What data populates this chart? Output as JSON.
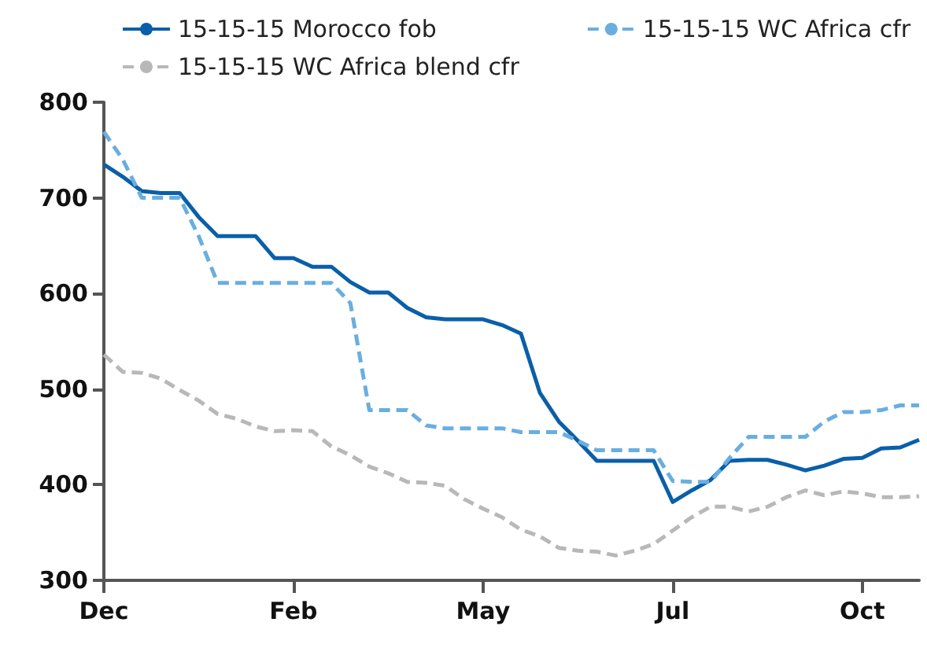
{
  "chart_data": {
    "type": "line",
    "categories": [
      "Dec",
      null,
      null,
      null,
      null,
      null,
      null,
      null,
      null,
      null,
      "Feb",
      null,
      null,
      null,
      null,
      null,
      null,
      null,
      null,
      null,
      "May",
      null,
      null,
      null,
      null,
      null,
      null,
      null,
      null,
      null,
      "Jul",
      null,
      null,
      null,
      null,
      null,
      null,
      null,
      null,
      null,
      "Oct",
      null,
      null,
      null
    ],
    "series": [
      {
        "name": "15-15-15 Morocco fob",
        "color": "#0a5fa8",
        "line_style": "solid",
        "values": [
          735,
          722,
          707,
          705,
          705,
          680,
          660,
          660,
          660,
          637,
          637,
          628,
          628,
          612,
          601,
          601,
          585,
          575,
          573,
          573,
          573,
          567,
          558,
          496,
          466,
          446,
          425,
          425,
          425,
          425,
          382,
          394,
          405,
          425,
          426,
          426,
          421,
          415,
          420,
          427,
          428,
          438,
          439,
          447
        ]
      },
      {
        "name": "15-15-15 WC Africa cfr",
        "color": "#6aaee0",
        "line_style": "dashed",
        "values": [
          769,
          740,
          700,
          700,
          700,
          660,
          611,
          611,
          611,
          611,
          611,
          611,
          611,
          590,
          478,
          478,
          478,
          462,
          459,
          459,
          459,
          459,
          455,
          455,
          455,
          446,
          436,
          436,
          436,
          436,
          404,
          403,
          403,
          428,
          450,
          450,
          450,
          450,
          466,
          476,
          476,
          478,
          483,
          483
        ]
      },
      {
        "name": "15-15-15 WC Africa blend cfr",
        "color": "#b8b8b8",
        "line_style": "dashed",
        "values": [
          536,
          518,
          517,
          511,
          499,
          488,
          474,
          469,
          461,
          456,
          457,
          456,
          440,
          431,
          419,
          412,
          403,
          402,
          399,
          385,
          375,
          366,
          353,
          346,
          334,
          331,
          330,
          326,
          331,
          338,
          352,
          366,
          377,
          377,
          372,
          377,
          387,
          394,
          389,
          393,
          391,
          387,
          387,
          388
        ]
      }
    ],
    "ylim": [
      300,
      800
    ],
    "yticks": [
      300,
      400,
      500,
      600,
      700,
      800
    ],
    "grid": false,
    "legend": "top left",
    "marker": "none"
  }
}
